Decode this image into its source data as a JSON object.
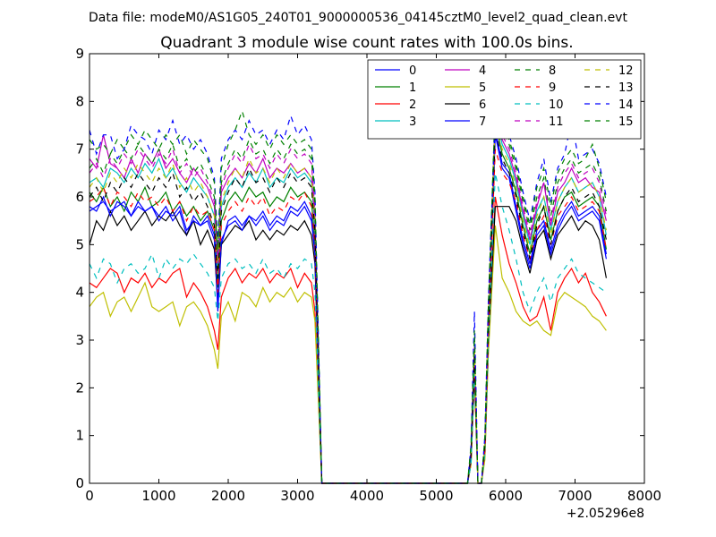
{
  "figure": {
    "suptitle": "Data file: modeM0/AS1G05_240T01_9000000536_04145cztM0_level2_quad_clean.evt",
    "title": "Quadrant 3 module wise count rates with 100.0s bins.",
    "x_offset_label": "+2.05296e8"
  },
  "chart_data": {
    "type": "line",
    "title": "Quadrant 3 module wise count rates with 100.0s bins.",
    "xlabel": "",
    "ylabel": "",
    "xlim": [
      0,
      8000
    ],
    "ylim": [
      0,
      9
    ],
    "x_offset": 205296000,
    "x_ticks": [
      0,
      1000,
      2000,
      3000,
      4000,
      5000,
      6000,
      7000,
      8000
    ],
    "y_ticks": [
      0,
      1,
      2,
      3,
      4,
      5,
      6,
      7,
      8,
      9
    ],
    "grid": false,
    "legend_position": "top-right",
    "legend_columns": 4,
    "x": [
      0,
      100,
      200,
      300,
      400,
      500,
      600,
      700,
      800,
      900,
      1000,
      1100,
      1200,
      1300,
      1400,
      1500,
      1600,
      1700,
      1800,
      1850,
      1900,
      2000,
      2100,
      2200,
      2300,
      2400,
      2500,
      2600,
      2700,
      2800,
      2900,
      3000,
      3100,
      3200,
      3250,
      3350,
      5450,
      5500,
      5550,
      5600,
      5650,
      5700,
      5750,
      5850,
      5950,
      6050,
      6150,
      6250,
      6350,
      6450,
      6550,
      6650,
      6750,
      6850,
      6950,
      7050,
      7150,
      7250,
      7350,
      7450
    ],
    "series": [
      {
        "name": "0",
        "color": "#0000ff",
        "dash": "solid",
        "values": [
          5.7,
          5.8,
          5.9,
          5.7,
          5.8,
          5.9,
          5.6,
          5.8,
          5.7,
          5.8,
          5.6,
          5.8,
          5.5,
          5.7,
          5.2,
          5.6,
          5.4,
          5.5,
          5.1,
          3.6,
          5.0,
          5.5,
          5.6,
          5.4,
          5.6,
          5.5,
          5.7,
          5.4,
          5.6,
          5.5,
          5.8,
          5.7,
          5.9,
          5.6,
          4.9,
          0,
          0,
          0.5,
          2.6,
          0,
          0,
          0.7,
          3.2,
          7.4,
          6.7,
          6.5,
          5.8,
          5.1,
          4.6,
          5.3,
          5.5,
          4.9,
          5.4,
          5.7,
          5.9,
          5.6,
          5.7,
          5.8,
          5.6,
          4.8
        ]
      },
      {
        "name": "1",
        "color": "#008000",
        "dash": "solid",
        "values": [
          6.1,
          5.9,
          6.2,
          5.8,
          6.0,
          5.7,
          6.1,
          5.9,
          6.2,
          5.8,
          5.9,
          6.1,
          5.7,
          5.9,
          5.6,
          5.8,
          5.5,
          5.7,
          5.3,
          4.1,
          5.5,
          5.9,
          6.1,
          5.9,
          6.2,
          6.0,
          6.1,
          5.8,
          6.0,
          5.9,
          6.2,
          6.0,
          6.1,
          5.9,
          5.1,
          0,
          0,
          0.6,
          2.7,
          0,
          0,
          0.8,
          3.3,
          7.6,
          6.9,
          6.6,
          6.1,
          5.4,
          4.8,
          5.5,
          5.8,
          5.1,
          5.7,
          6.0,
          6.1,
          5.8,
          5.9,
          6.0,
          5.8,
          4.9
        ]
      },
      {
        "name": "2",
        "color": "#ff0000",
        "dash": "solid",
        "values": [
          4.2,
          4.1,
          4.3,
          4.5,
          4.4,
          4.0,
          4.3,
          4.2,
          4.4,
          4.1,
          4.3,
          4.2,
          4.4,
          4.5,
          3.9,
          4.2,
          4.0,
          3.7,
          3.2,
          2.8,
          3.9,
          4.3,
          4.5,
          4.2,
          4.4,
          4.3,
          4.5,
          4.2,
          4.4,
          4.3,
          4.5,
          4.1,
          4.4,
          4.2,
          3.6,
          0,
          0,
          0.4,
          2.3,
          0,
          0,
          0.6,
          2.8,
          6.0,
          5.2,
          4.6,
          4.2,
          3.7,
          3.4,
          3.5,
          3.9,
          3.2,
          4.0,
          4.3,
          4.5,
          4.2,
          4.4,
          4.0,
          3.8,
          3.5
        ]
      },
      {
        "name": "3",
        "color": "#00bfbf",
        "dash": "solid",
        "values": [
          6.3,
          6.4,
          6.2,
          6.6,
          6.5,
          6.3,
          6.6,
          6.4,
          6.7,
          6.5,
          6.8,
          6.4,
          6.6,
          6.3,
          6.1,
          6.4,
          6.2,
          6.0,
          5.6,
          4.4,
          5.8,
          6.2,
          6.4,
          6.2,
          6.5,
          6.3,
          6.6,
          6.2,
          6.4,
          6.3,
          6.6,
          6.4,
          6.5,
          6.3,
          5.4,
          0,
          0,
          0.6,
          2.8,
          0,
          0,
          0.8,
          3.4,
          7.8,
          7.1,
          6.8,
          6.3,
          5.6,
          5.0,
          5.7,
          6.0,
          5.3,
          5.9,
          6.2,
          6.4,
          6.1,
          6.2,
          6.3,
          6.0,
          5.2
        ]
      },
      {
        "name": "4",
        "color": "#bf00bf",
        "dash": "solid",
        "values": [
          6.8,
          6.6,
          7.3,
          6.7,
          6.6,
          6.4,
          6.8,
          6.5,
          6.9,
          6.7,
          7.0,
          6.6,
          6.8,
          6.5,
          6.3,
          6.6,
          6.4,
          6.2,
          5.8,
          4.6,
          6.1,
          6.4,
          6.6,
          6.4,
          6.7,
          6.5,
          6.8,
          6.4,
          6.6,
          6.5,
          6.7,
          6.5,
          6.6,
          6.4,
          5.5,
          0,
          0,
          0.6,
          2.8,
          0,
          0,
          0.8,
          3.4,
          7.7,
          7.2,
          6.9,
          6.4,
          5.7,
          5.1,
          5.8,
          6.3,
          5.4,
          6.1,
          6.3,
          6.6,
          6.3,
          6.4,
          6.2,
          6.1,
          5.5
        ]
      },
      {
        "name": "5",
        "color": "#bfbf00",
        "dash": "solid",
        "values": [
          3.7,
          3.9,
          4.0,
          3.5,
          3.8,
          3.9,
          3.6,
          3.9,
          4.2,
          3.7,
          3.6,
          3.7,
          3.8,
          3.3,
          3.7,
          3.8,
          3.6,
          3.3,
          2.8,
          2.4,
          3.5,
          3.8,
          3.4,
          4.0,
          3.9,
          3.7,
          4.1,
          3.8,
          4.0,
          3.9,
          4.1,
          3.8,
          4.0,
          3.9,
          3.4,
          0,
          0,
          0.4,
          2.2,
          0,
          0,
          0.5,
          2.7,
          5.4,
          4.3,
          4.0,
          3.6,
          3.4,
          3.3,
          3.4,
          3.2,
          3.1,
          3.8,
          4.0,
          3.9,
          3.8,
          3.7,
          3.5,
          3.4,
          3.2
        ]
      },
      {
        "name": "6",
        "color": "#000000",
        "dash": "solid",
        "values": [
          5.0,
          5.5,
          5.3,
          5.7,
          5.4,
          5.6,
          5.3,
          5.5,
          5.7,
          5.4,
          5.6,
          5.5,
          5.7,
          5.4,
          5.2,
          5.5,
          5.0,
          5.3,
          4.9,
          3.8,
          5.0,
          5.2,
          5.4,
          5.3,
          5.5,
          5.1,
          5.3,
          5.1,
          5.3,
          5.2,
          5.4,
          5.3,
          5.5,
          5.2,
          4.6,
          0,
          0,
          0.5,
          2.4,
          0,
          0,
          0.7,
          3.0,
          5.8,
          5.8,
          5.8,
          5.5,
          4.9,
          4.4,
          5.1,
          5.3,
          4.7,
          5.2,
          5.4,
          5.6,
          5.3,
          5.5,
          5.4,
          5.1,
          4.3
        ]
      },
      {
        "name": "7",
        "color": "#0000ff",
        "dash": "solid",
        "values": [
          5.8,
          5.7,
          6.0,
          5.6,
          5.9,
          5.8,
          5.6,
          5.9,
          5.7,
          5.8,
          5.5,
          5.7,
          5.6,
          5.8,
          5.3,
          5.5,
          5.4,
          5.6,
          5.2,
          3.7,
          5.1,
          5.4,
          5.5,
          5.3,
          5.6,
          5.4,
          5.6,
          5.3,
          5.5,
          5.4,
          5.7,
          5.6,
          5.8,
          5.5,
          4.8,
          0,
          0,
          0.5,
          2.5,
          0,
          0,
          0.7,
          3.1,
          7.3,
          6.6,
          6.4,
          5.7,
          5.0,
          4.5,
          5.2,
          5.4,
          4.8,
          5.3,
          5.6,
          5.8,
          5.5,
          5.6,
          5.7,
          5.5,
          4.7
        ]
      },
      {
        "name": "8",
        "color": "#008000",
        "dash": "dashed",
        "values": [
          6.6,
          6.8,
          6.5,
          6.9,
          6.7,
          7.0,
          6.8,
          7.1,
          6.9,
          6.7,
          7.0,
          6.8,
          7.1,
          6.6,
          6.8,
          6.5,
          6.7,
          6.4,
          6.0,
          4.8,
          6.3,
          6.7,
          7.0,
          6.8,
          7.2,
          6.9,
          7.0,
          6.7,
          7.0,
          6.8,
          7.1,
          6.9,
          7.0,
          6.8,
          5.8,
          0,
          0,
          0.7,
          3.0,
          0,
          0,
          0.9,
          3.6,
          8.0,
          7.4,
          7.1,
          6.6,
          5.9,
          5.3,
          6.0,
          6.4,
          5.6,
          6.3,
          6.6,
          6.8,
          6.5,
          6.6,
          6.7,
          6.4,
          5.7
        ]
      },
      {
        "name": "9",
        "color": "#ff0000",
        "dash": "dashed",
        "values": [
          5.9,
          6.0,
          6.2,
          5.8,
          6.1,
          6.0,
          5.8,
          6.1,
          5.9,
          6.0,
          5.8,
          6.0,
          5.7,
          5.9,
          5.5,
          5.8,
          5.6,
          5.7,
          5.3,
          4.0,
          5.4,
          5.7,
          5.9,
          5.7,
          6.0,
          5.8,
          6.0,
          5.6,
          5.8,
          5.7,
          6.0,
          5.9,
          6.1,
          5.8,
          5.0,
          0,
          0,
          0.5,
          2.6,
          0,
          0,
          0.7,
          3.2,
          7.0,
          6.5,
          6.3,
          5.9,
          5.2,
          4.7,
          5.3,
          5.6,
          5.0,
          5.6,
          5.8,
          6.0,
          5.7,
          5.8,
          5.9,
          5.7,
          4.9
        ]
      },
      {
        "name": "10",
        "color": "#00bfbf",
        "dashed": true,
        "dash": "dashed",
        "values": [
          4.6,
          4.3,
          4.7,
          4.6,
          4.2,
          4.5,
          4.6,
          4.4,
          4.5,
          4.8,
          4.3,
          4.7,
          4.5,
          4.7,
          4.6,
          4.8,
          4.6,
          4.4,
          4.1,
          3.4,
          4.3,
          4.6,
          4.7,
          4.5,
          4.6,
          4.4,
          4.7,
          4.4,
          4.5,
          4.3,
          4.6,
          4.5,
          4.7,
          4.6,
          4.0,
          0,
          0,
          0.4,
          2.4,
          0,
          0,
          0.6,
          2.9,
          6.5,
          5.8,
          5.3,
          4.7,
          4.0,
          3.6,
          4.0,
          4.3,
          3.8,
          4.3,
          4.5,
          4.7,
          4.4,
          4.3,
          4.2,
          4.1,
          4.0
        ]
      },
      {
        "name": "11",
        "color": "#bf00bf",
        "dash": "dashed",
        "values": [
          6.5,
          6.7,
          6.4,
          6.8,
          6.6,
          6.9,
          6.7,
          7.0,
          6.8,
          6.6,
          6.9,
          6.7,
          7.0,
          6.5,
          6.7,
          6.4,
          6.6,
          6.3,
          5.9,
          4.7,
          6.2,
          6.6,
          6.9,
          6.7,
          7.1,
          6.8,
          6.9,
          6.6,
          6.9,
          6.7,
          7.0,
          6.8,
          6.9,
          6.7,
          5.7,
          0,
          0,
          0.7,
          2.9,
          0,
          0,
          0.9,
          3.5,
          7.9,
          7.3,
          7.0,
          6.5,
          5.8,
          5.2,
          5.9,
          6.3,
          5.5,
          6.2,
          6.5,
          6.7,
          6.4,
          6.5,
          6.6,
          6.3,
          5.6
        ]
      },
      {
        "name": "12",
        "color": "#bfbf00",
        "dash": "dashed",
        "values": [
          6.2,
          6.4,
          6.1,
          6.5,
          6.3,
          6.6,
          6.4,
          6.7,
          6.5,
          6.3,
          6.6,
          6.4,
          6.7,
          6.2,
          6.4,
          6.1,
          6.3,
          6.0,
          5.6,
          4.5,
          5.9,
          6.3,
          6.6,
          6.4,
          6.8,
          6.5,
          6.6,
          6.3,
          6.6,
          6.4,
          6.7,
          6.5,
          6.6,
          6.4,
          5.5,
          0,
          0,
          0.6,
          2.8,
          0,
          0,
          0.8,
          3.4,
          7.6,
          7.0,
          6.7,
          6.2,
          5.5,
          4.9,
          5.6,
          6.0,
          5.2,
          5.9,
          6.2,
          6.4,
          6.1,
          6.2,
          6.3,
          6.0,
          5.3
        ]
      },
      {
        "name": "13",
        "color": "#000000",
        "dash": "dashed",
        "values": [
          6.0,
          6.2,
          5.9,
          6.3,
          6.1,
          6.4,
          6.2,
          6.5,
          6.3,
          6.1,
          6.4,
          6.2,
          6.5,
          6.0,
          6.2,
          5.9,
          6.1,
          5.8,
          5.4,
          4.3,
          5.7,
          6.1,
          6.4,
          6.2,
          6.6,
          6.3,
          6.4,
          6.1,
          6.4,
          6.2,
          6.5,
          6.3,
          6.4,
          6.2,
          5.3,
          0,
          0,
          0.6,
          2.7,
          0,
          0,
          0.8,
          3.3,
          7.4,
          6.8,
          6.5,
          6.0,
          5.3,
          4.7,
          5.4,
          5.8,
          5.0,
          5.7,
          6.0,
          6.2,
          5.9,
          6.0,
          6.1,
          5.8,
          5.1
        ]
      },
      {
        "name": "14",
        "color": "#0000ff",
        "dash": "dashed",
        "values": [
          7.4,
          6.9,
          7.3,
          7.3,
          6.8,
          7.0,
          7.5,
          7.3,
          7.2,
          6.9,
          7.4,
          7.2,
          7.6,
          7.1,
          7.3,
          7.0,
          7.2,
          6.9,
          6.4,
          5.0,
          6.8,
          7.2,
          7.4,
          7.2,
          7.6,
          7.3,
          7.4,
          7.1,
          7.4,
          7.2,
          7.7,
          7.3,
          7.5,
          7.2,
          6.1,
          0,
          0,
          0.8,
          3.6,
          0,
          0,
          1.0,
          3.8,
          7.7,
          7.6,
          7.3,
          6.8,
          6.1,
          5.5,
          6.3,
          6.8,
          5.9,
          6.6,
          6.9,
          7.6,
          6.8,
          6.9,
          7.0,
          6.7,
          6.0
        ]
      },
      {
        "name": "15",
        "color": "#008000",
        "dash": "dashed",
        "values": [
          7.2,
          7.0,
          7.1,
          6.9,
          7.2,
          7.0,
          7.3,
          7.1,
          7.4,
          7.2,
          7.0,
          7.3,
          7.1,
          7.3,
          6.9,
          7.2,
          7.0,
          6.8,
          6.3,
          4.9,
          6.6,
          7.1,
          7.4,
          7.8,
          7.3,
          7.1,
          7.3,
          7.0,
          7.3,
          7.1,
          7.3,
          7.1,
          7.2,
          7.0,
          6.0,
          0,
          0,
          0.8,
          3.2,
          0,
          0,
          1.0,
          3.7,
          7.9,
          7.5,
          7.2,
          6.7,
          6.0,
          5.4,
          6.2,
          6.6,
          5.8,
          6.5,
          6.8,
          7.0,
          6.7,
          6.8,
          7.1,
          6.6,
          5.9
        ]
      }
    ]
  }
}
